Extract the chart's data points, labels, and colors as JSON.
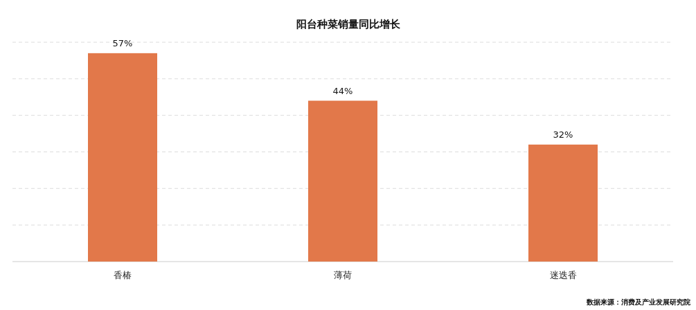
{
  "chart_data": {
    "type": "bar",
    "title": "阳台种菜销量同比增长",
    "categories": [
      "香椿",
      "薄荷",
      "迷迭香"
    ],
    "values": [
      57,
      44,
      32
    ],
    "value_labels": [
      "57%",
      "44%",
      "32%"
    ],
    "color": "#e2784a",
    "ylim": [
      0,
      60
    ],
    "yticks": [
      {
        "value": 0,
        "label": null
      },
      {
        "value": 10,
        "label": null
      },
      {
        "value": 20,
        "label": null
      },
      {
        "value": 30,
        "label": null
      },
      {
        "value": 40,
        "label": null
      },
      {
        "value": 50,
        "label": null
      },
      {
        "value": 60,
        "label": null
      }
    ],
    "tick_labels": "x",
    "grid": "y",
    "annotations": [
      "数据来源：消费及产业发展研究院"
    ]
  }
}
